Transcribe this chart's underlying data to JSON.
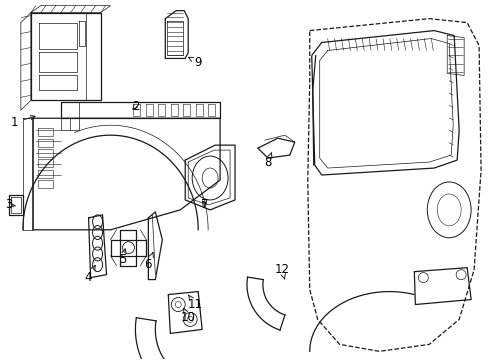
{
  "bg_color": "#ffffff",
  "line_color": "#1a1a1a",
  "label_color": "#000000",
  "label_fontsize": 8.5,
  "fig_width": 4.89,
  "fig_height": 3.6,
  "dpi": 100
}
